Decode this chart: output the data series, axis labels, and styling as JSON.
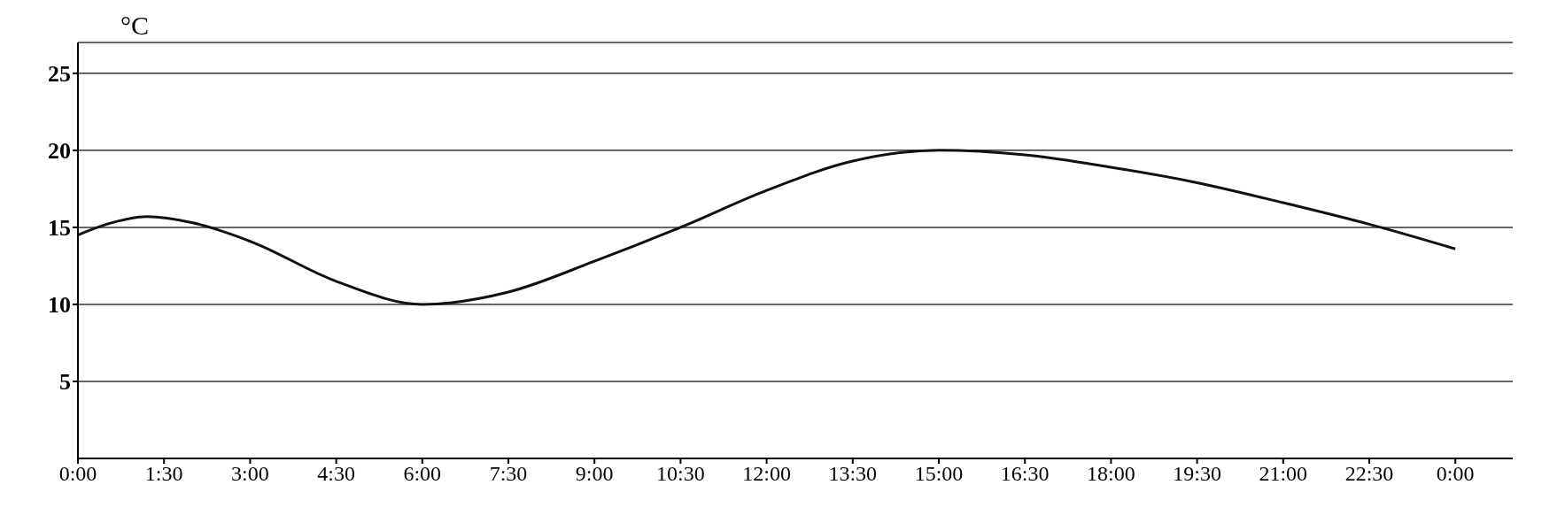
{
  "chart_data": {
    "type": "line",
    "ylabel": "°C",
    "x": [
      0,
      0.5,
      1.2,
      2,
      3,
      4.5,
      6,
      7.5,
      9,
      10.5,
      12,
      13.5,
      15,
      16.5,
      18,
      19.5,
      21,
      22.5,
      24
    ],
    "series": [
      {
        "color": "#111111",
        "values": [
          14.5,
          15.2,
          15.7,
          15.3,
          14.1,
          11.5,
          10,
          10.8,
          12.8,
          15,
          17.4,
          19.3,
          20,
          19.7,
          18.9,
          17.9,
          16.6,
          15.2,
          13.6
        ]
      }
    ],
    "xlim": [
      0,
      25
    ],
    "xticks": [
      {
        "value": 0,
        "label": "0:00"
      },
      {
        "value": 1.5,
        "label": "1:30"
      },
      {
        "value": 3,
        "label": "3:00"
      },
      {
        "value": 4.5,
        "label": "4:30"
      },
      {
        "value": 6,
        "label": "6:00"
      },
      {
        "value": 7.5,
        "label": "7:30"
      },
      {
        "value": 9,
        "label": "9:00"
      },
      {
        "value": 10.5,
        "label": "10:30"
      },
      {
        "value": 12,
        "label": "12:00"
      },
      {
        "value": 13.5,
        "label": "13:30"
      },
      {
        "value": 15,
        "label": "15:00"
      },
      {
        "value": 16.5,
        "label": "16:30"
      },
      {
        "value": 18,
        "label": "18:00"
      },
      {
        "value": 19.5,
        "label": "19:30"
      },
      {
        "value": 21,
        "label": "21:00"
      },
      {
        "value": 22.5,
        "label": "22:30"
      },
      {
        "value": 24,
        "label": "0:00"
      }
    ],
    "ylim": [
      0,
      27
    ],
    "yticks": [
      5,
      10,
      15,
      20,
      25
    ],
    "grid": "y",
    "marker": "none",
    "line_style": "solid"
  }
}
